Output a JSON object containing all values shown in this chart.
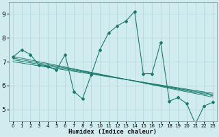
{
  "xlabel": "Humidex (Indice chaleur)",
  "ylabel": "",
  "background_color": "#d1ecee",
  "grid_color": "#b8d8db",
  "line_color": "#1a7a6e",
  "xlim": [
    -0.5,
    23.5
  ],
  "ylim": [
    4.5,
    9.5
  ],
  "xticks": [
    0,
    1,
    2,
    3,
    4,
    5,
    6,
    7,
    8,
    9,
    10,
    11,
    12,
    13,
    14,
    15,
    16,
    17,
    18,
    19,
    20,
    21,
    22,
    23
  ],
  "yticks": [
    5,
    6,
    7,
    8,
    9
  ],
  "main_x": [
    0,
    1,
    2,
    3,
    4,
    5,
    6,
    7,
    8,
    9,
    10,
    11,
    12,
    13,
    14,
    15,
    16,
    17,
    18,
    19,
    20,
    21,
    22,
    23
  ],
  "main_y": [
    7.2,
    7.5,
    7.3,
    6.85,
    6.8,
    6.65,
    7.3,
    5.75,
    5.45,
    6.45,
    7.5,
    8.2,
    8.5,
    8.7,
    9.1,
    6.5,
    6.5,
    7.8,
    5.35,
    5.5,
    5.25,
    4.4,
    5.15,
    5.3
  ],
  "reg_lines": [
    {
      "x0": 0,
      "y0": 7.22,
      "x1": 23,
      "y1": 5.52
    },
    {
      "x0": 0,
      "y0": 7.15,
      "x1": 23,
      "y1": 5.58
    },
    {
      "x0": 0,
      "y0": 7.08,
      "x1": 23,
      "y1": 5.63
    },
    {
      "x0": 0,
      "y0": 7.0,
      "x1": 23,
      "y1": 5.68
    }
  ],
  "figsize": [
    3.2,
    2.0
  ],
  "dpi": 100
}
